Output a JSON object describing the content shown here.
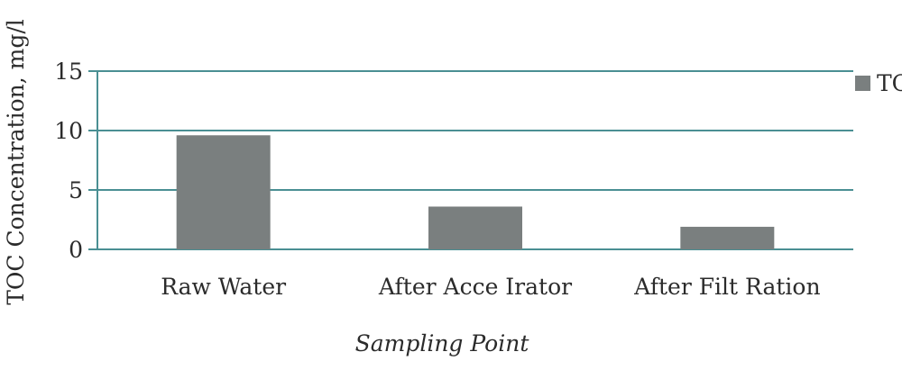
{
  "chart_data": {
    "type": "bar",
    "title": "",
    "xlabel": "Sampling Point",
    "ylabel": "TOC Concentration, mg/l",
    "categories": [
      "Raw Water",
      "After Acce Irator",
      "After Filt Ration"
    ],
    "series": [
      {
        "name": "TOC",
        "values": [
          9.6,
          3.6,
          1.9
        ]
      }
    ],
    "ylim": [
      0,
      15
    ],
    "yticks": [
      0,
      5,
      10,
      15
    ],
    "ytick_labels": [
      "0",
      "5",
      "10",
      "15"
    ],
    "grid": true,
    "legend_position": "top-right",
    "colors": {
      "bar": "#7a7f7f",
      "grid": "#4a8f93",
      "text": "#2b2b2b"
    }
  }
}
